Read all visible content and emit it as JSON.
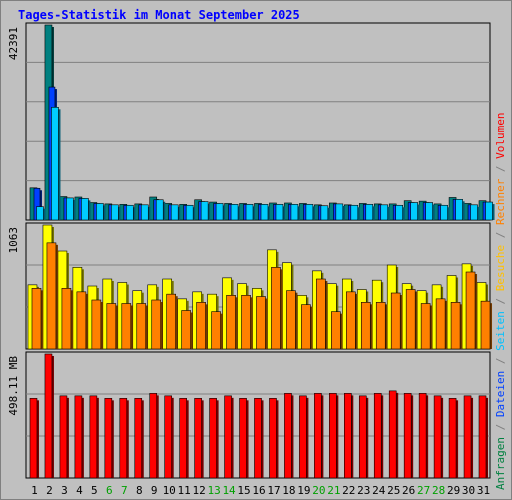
{
  "chart_data": {
    "type": "bar",
    "title": "Tages-Statistik im Monat September 2025",
    "categories": [
      "1",
      "2",
      "3",
      "4",
      "5",
      "6",
      "7",
      "8",
      "9",
      "10",
      "11",
      "12",
      "13",
      "14",
      "15",
      "16",
      "17",
      "18",
      "19",
      "20",
      "21",
      "22",
      "23",
      "24",
      "25",
      "26",
      "27",
      "28",
      "29",
      "30",
      "31"
    ],
    "weekend_days": [
      "6",
      "7",
      "13",
      "14",
      "20",
      "21",
      "27",
      "28"
    ],
    "right_axis_labels": [
      {
        "text": "Anfragen",
        "color": "#008040"
      },
      {
        "text": " / ",
        "color": "#808080"
      },
      {
        "text": "Dateien",
        "color": "#0040ff"
      },
      {
        "text": " / ",
        "color": "#808080"
      },
      {
        "text": "Seiten",
        "color": "#00c0ff"
      },
      {
        "text": " / ",
        "color": "#808080"
      },
      {
        "text": "Besuche",
        "color": "#ffc000"
      },
      {
        "text": " / ",
        "color": "#808080"
      },
      {
        "text": "Rechner",
        "color": "#ff8000"
      },
      {
        "text": " / ",
        "color": "#808080"
      },
      {
        "text": "Volumen",
        "color": "#ff0000"
      }
    ],
    "panels": [
      {
        "name": "requests",
        "ymax_label": "42391",
        "ymax": 42391,
        "series": [
          {
            "name": "Anfragen",
            "color": "#008080",
            "values": [
              7000,
              42391,
              5100,
              5000,
              3800,
              3500,
              3400,
              3500,
              5000,
              3600,
              3400,
              4400,
              3900,
              3600,
              3600,
              3600,
              3700,
              3700,
              3600,
              3300,
              3700,
              3300,
              3600,
              3500,
              3500,
              4200,
              4100,
              3500,
              4900,
              3600,
              4200
            ]
          },
          {
            "name": "Dateien",
            "color": "#0040ff",
            "values": [
              6900,
              28900,
              4800,
              4700,
              3600,
              3300,
              3200,
              3300,
              4400,
              3300,
              3200,
              4000,
              3600,
              3400,
              3400,
              3400,
              3400,
              3400,
              3400,
              3100,
              3500,
              3200,
              3400,
              3300,
              3200,
              3800,
              3800,
              3200,
              4500,
              3300,
              3900
            ]
          },
          {
            "name": "Seiten",
            "color": "#00ccff",
            "values": [
              2900,
              24500,
              4800,
              4700,
              3600,
              3300,
              3200,
              3300,
              4400,
              3300,
              3200,
              4000,
              3600,
              3400,
              3400,
              3400,
              3400,
              3400,
              3400,
              3100,
              3500,
              3200,
              3400,
              3300,
              3200,
              3800,
              3800,
              3200,
              4500,
              3300,
              3900
            ]
          }
        ]
      },
      {
        "name": "visits",
        "ymax_label": "1063",
        "ymax": 1063,
        "series": [
          {
            "name": "Besuche",
            "color": "#ffff00",
            "values": [
              550,
              1063,
              840,
              700,
              540,
              600,
              570,
              500,
              550,
              600,
              430,
              490,
              470,
              610,
              560,
              520,
              850,
              740,
              460,
              670,
              560,
              600,
              510,
              590,
              720,
              560,
              500,
              550,
              630,
              730,
              570
            ]
          },
          {
            "name": "Rechner",
            "color": "#ff8000",
            "values": [
              520,
              910,
              520,
              490,
              420,
              390,
              390,
              390,
              420,
              470,
              330,
              400,
              320,
              460,
              460,
              450,
              700,
              500,
              380,
              600,
              320,
              490,
              400,
              400,
              480,
              510,
              390,
              430,
              400,
              660,
              410
            ]
          }
        ]
      },
      {
        "name": "volume",
        "ymax_label": "498.11 MB",
        "ymax": 498.11,
        "series": [
          {
            "name": "Volumen",
            "color": "#ff0000",
            "values": [
              320,
              498.11,
              330,
              330,
              330,
              320,
              320,
              320,
              340,
              330,
              320,
              320,
              320,
              330,
              320,
              320,
              320,
              340,
              330,
              340,
              340,
              340,
              330,
              340,
              350,
              340,
              340,
              330,
              320,
              330,
              330
            ]
          }
        ]
      }
    ]
  }
}
